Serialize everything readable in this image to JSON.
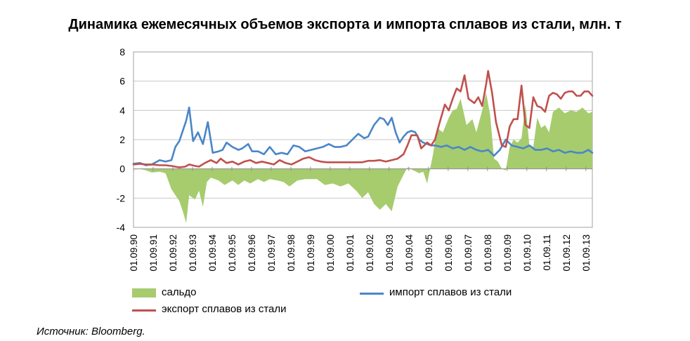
{
  "chart_data": {
    "type": "area+line",
    "title": "Динамика ежемесячных объемов экспорта и импорта сплавов из стали, млн. т",
    "x_tick_labels": [
      "01.09.90",
      "01.09.91",
      "01.09.92",
      "01.09.93",
      "01.09.94",
      "01.09.95",
      "01.09.96",
      "01.09.97",
      "01.09.98",
      "01.09.99",
      "01.09.00",
      "01.09.01",
      "01.09.02",
      "01.09.03",
      "01.09.04",
      "01.09.05",
      "01.09.06",
      "01.09.07",
      "01.09.08",
      "01.09.09",
      "01.09.10",
      "01.09.11",
      "01.09.12",
      "01.09.13"
    ],
    "x_start_year": 1990.67,
    "x_end_year": 2014.0,
    "ylim": [
      -4,
      8
    ],
    "y_ticks": [
      -4,
      -2,
      0,
      2,
      4,
      6,
      8
    ],
    "grid": "horizontal",
    "legend_position": "bottom",
    "series": [
      {
        "name": "сальдо",
        "kind": "area",
        "color": "#a6cc6e",
        "x": [
          1990.67,
          1991.0,
          1991.3,
          1991.6,
          1992.0,
          1992.3,
          1992.6,
          1993.0,
          1993.2,
          1993.35,
          1993.5,
          1993.8,
          1994.0,
          1994.2,
          1994.4,
          1994.6,
          1995.0,
          1995.3,
          1995.7,
          1996.0,
          1996.3,
          1996.6,
          1997.0,
          1997.3,
          1997.6,
          1998.0,
          1998.3,
          1998.6,
          1999.0,
          1999.4,
          2000.0,
          2000.4,
          2000.8,
          2001.2,
          2001.6,
          2002.0,
          2002.3,
          2002.6,
          2002.9,
          2003.2,
          2003.5,
          2003.8,
          2004.1,
          2004.4,
          2004.6,
          2004.9,
          2005.2,
          2005.4,
          2005.6,
          2005.9,
          2006.1,
          2006.4,
          2006.7,
          2006.9,
          2007.1,
          2007.3,
          2007.6,
          2007.9,
          2008.1,
          2008.4,
          2008.6,
          2008.8,
          2009.0,
          2009.2,
          2009.4,
          2009.6,
          2009.8,
          2010.0,
          2010.2,
          2010.4,
          2010.6,
          2010.8,
          2011.0,
          2011.2,
          2011.4,
          2011.6,
          2011.8,
          2012.0,
          2012.3,
          2012.6,
          2012.9,
          2013.2,
          2013.5,
          2013.8,
          2014.0
        ],
        "values": [
          -0.05,
          0.0,
          -0.1,
          -0.25,
          -0.2,
          -0.3,
          -1.4,
          -2.2,
          -3.0,
          -3.7,
          -1.8,
          -2.1,
          -1.5,
          -2.6,
          -0.9,
          -0.6,
          -0.8,
          -1.1,
          -0.8,
          -1.1,
          -0.8,
          -1.0,
          -0.7,
          -0.9,
          -0.7,
          -0.8,
          -0.9,
          -1.2,
          -0.8,
          -0.7,
          -0.7,
          -1.1,
          -1.0,
          -1.2,
          -1.0,
          -1.5,
          -2.0,
          -1.6,
          -2.4,
          -2.8,
          -2.4,
          -2.9,
          -1.2,
          -0.4,
          0.1,
          -0.1,
          -0.3,
          -0.2,
          -1.0,
          1.0,
          2.8,
          2.5,
          3.5,
          4.0,
          4.1,
          4.8,
          3.0,
          3.4,
          2.5,
          4.0,
          5.2,
          3.7,
          0.7,
          0.5,
          0.0,
          -0.1,
          1.5,
          2.0,
          1.8,
          2.1,
          4.4,
          1.6,
          1.5,
          3.5,
          2.8,
          3.0,
          2.5,
          3.9,
          4.2,
          3.8,
          4.0,
          3.9,
          4.2,
          3.8,
          3.9
        ]
      },
      {
        "name": "импорт сплавов из стали",
        "kind": "line",
        "color": "#4a86c8",
        "x": [
          1990.67,
          1991.0,
          1991.3,
          1991.6,
          1992.0,
          1992.3,
          1992.6,
          1992.8,
          1993.0,
          1993.2,
          1993.35,
          1993.5,
          1993.7,
          1993.95,
          1994.2,
          1994.45,
          1994.7,
          1995.0,
          1995.2,
          1995.4,
          1995.7,
          1996.0,
          1996.2,
          1996.5,
          1996.7,
          1997.0,
          1997.3,
          1997.6,
          1997.9,
          1998.2,
          1998.5,
          1998.8,
          1999.1,
          1999.4,
          1999.7,
          2000.0,
          2000.3,
          2000.6,
          2000.9,
          2001.2,
          2001.5,
          2001.8,
          2002.1,
          2002.4,
          2002.6,
          2002.9,
          2003.2,
          2003.4,
          2003.6,
          2003.8,
          2004.0,
          2004.2,
          2004.4,
          2004.6,
          2004.8,
          2005.0,
          2005.2,
          2005.4,
          2005.6,
          2005.8,
          2006.0,
          2006.3,
          2006.6,
          2006.9,
          2007.2,
          2007.5,
          2007.8,
          2008.1,
          2008.4,
          2008.7,
          2009.0,
          2009.3,
          2009.6,
          2009.9,
          2010.2,
          2010.5,
          2010.8,
          2011.1,
          2011.4,
          2011.7,
          2012.0,
          2012.3,
          2012.6,
          2012.9,
          2013.2,
          2013.5,
          2013.8,
          2014.0
        ],
        "values": [
          0.35,
          0.4,
          0.25,
          0.3,
          0.6,
          0.5,
          0.6,
          1.5,
          1.9,
          2.7,
          3.3,
          4.2,
          1.9,
          2.5,
          1.7,
          3.2,
          1.1,
          1.2,
          1.3,
          1.8,
          1.5,
          1.3,
          1.4,
          1.7,
          1.2,
          1.2,
          1.0,
          1.5,
          1.0,
          1.1,
          1.0,
          1.6,
          1.5,
          1.2,
          1.3,
          1.4,
          1.5,
          1.7,
          1.5,
          1.5,
          1.6,
          2.0,
          2.4,
          2.1,
          2.2,
          3.0,
          3.5,
          3.4,
          3.0,
          3.5,
          2.5,
          1.8,
          2.2,
          2.5,
          2.6,
          2.5,
          2.0,
          1.8,
          1.7,
          1.6,
          1.6,
          1.5,
          1.6,
          1.4,
          1.5,
          1.3,
          1.5,
          1.3,
          1.2,
          1.3,
          0.9,
          1.3,
          2.0,
          1.6,
          1.5,
          1.4,
          1.6,
          1.3,
          1.3,
          1.4,
          1.2,
          1.3,
          1.1,
          1.2,
          1.1,
          1.1,
          1.3,
          1.1
        ]
      },
      {
        "name": "экспорт сплавов из стали",
        "kind": "line",
        "color": "#c0504d",
        "x": [
          1990.67,
          1991.0,
          1991.3,
          1991.6,
          1992.0,
          1992.3,
          1992.6,
          1993.0,
          1993.3,
          1993.5,
          1993.8,
          1994.0,
          1994.3,
          1994.6,
          1994.9,
          1995.1,
          1995.4,
          1995.7,
          1996.0,
          1996.3,
          1996.6,
          1996.9,
          1997.2,
          1997.5,
          1997.8,
          1998.1,
          1998.4,
          1998.7,
          1999.0,
          1999.3,
          1999.6,
          1999.9,
          2000.2,
          2000.5,
          2000.8,
          2001.1,
          2001.4,
          2001.7,
          2002.0,
          2002.3,
          2002.6,
          2002.9,
          2003.2,
          2003.5,
          2003.8,
          2004.1,
          2004.4,
          2004.6,
          2004.8,
          2005.1,
          2005.3,
          2005.6,
          2005.8,
          2006.0,
          2006.2,
          2006.5,
          2006.7,
          2006.9,
          2007.1,
          2007.3,
          2007.5,
          2007.7,
          2008.0,
          2008.2,
          2008.4,
          2008.6,
          2008.7,
          2008.9,
          2009.1,
          2009.4,
          2009.6,
          2009.8,
          2010.0,
          2010.2,
          2010.4,
          2010.6,
          2010.8,
          2011.0,
          2011.2,
          2011.4,
          2011.6,
          2011.8,
          2012.0,
          2012.2,
          2012.4,
          2012.6,
          2012.8,
          2013.0,
          2013.2,
          2013.4,
          2013.6,
          2013.8,
          2014.0
        ],
        "values": [
          0.3,
          0.35,
          0.3,
          0.3,
          0.25,
          0.25,
          0.2,
          0.1,
          0.15,
          0.3,
          0.2,
          0.15,
          0.4,
          0.6,
          0.4,
          0.7,
          0.4,
          0.5,
          0.3,
          0.5,
          0.6,
          0.4,
          0.5,
          0.4,
          0.3,
          0.6,
          0.4,
          0.3,
          0.5,
          0.7,
          0.8,
          0.6,
          0.5,
          0.45,
          0.45,
          0.45,
          0.45,
          0.45,
          0.45,
          0.45,
          0.55,
          0.55,
          0.6,
          0.5,
          0.6,
          0.7,
          1.0,
          1.6,
          2.3,
          2.3,
          1.4,
          1.8,
          1.6,
          2.0,
          3.0,
          4.4,
          4.0,
          4.8,
          5.5,
          5.3,
          6.4,
          4.8,
          4.5,
          4.9,
          4.3,
          5.8,
          6.7,
          5.2,
          3.2,
          1.6,
          1.5,
          2.9,
          3.4,
          3.4,
          5.7,
          3.0,
          2.8,
          4.9,
          4.3,
          4.2,
          3.9,
          5.0,
          5.2,
          5.1,
          4.8,
          5.2,
          5.3,
          5.3,
          5.0,
          5.0,
          5.3,
          5.3,
          5.0
        ]
      }
    ],
    "legend": [
      "сальдо",
      "импорт сплавов из стали",
      "экспорт сплавов из стали"
    ]
  },
  "source": "Источник: Bloomberg.",
  "colors": {
    "saldo": "#a6cc6e",
    "import": "#4a86c8",
    "export": "#c0504d",
    "grid": "#c8c8c8"
  }
}
